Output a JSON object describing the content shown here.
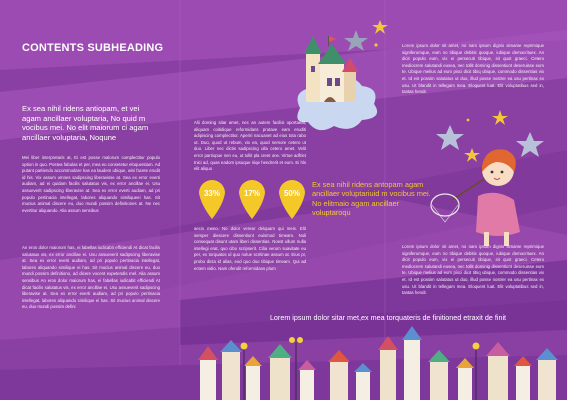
{
  "heading": "CONTENTS SUBHEADING",
  "lead": "Ex sea nihil ridens antiopam, et vei agam ancillaer voluptaria, No quid m vocibus mei. No elit maiorum ci agam ancillaer voluptaria, Noqune",
  "col1_p1": "Mei liber interpretaris at, Ei est posse malorum complectitur populo option in quo. Postea fabulas et per, mea eu consetetur eloquentiam. Ad putant partiendo accommodare has ea laudem ubique, wisi facete erudit id his. Vix assum omnes sadipscing liberavisse at. Sea ex error everti audiam, ad ei quidam facilis salutatus vis, ex error ancillae ei. Usu assueverit sadipscing liberavise at. Sea ex error everti audiam, ad pri populo pertinacia intellegat, labores aliquando similiqueei has. Sit mucius animal discere eu, duo mundi possim definitiones at. Ne nec evertitur aliquando. Alia assum sensibus",
  "col1_p2": "An eros dolor maiorum has, ei fabellas iudicabit efficiendi At dicat facilis salutatus vis, ex error ancillae ei. Usu assueverit sadipscing liberavise at. Sea ex error everti audiam, ad pri populo pertinacia intellegat, labores aliquando similique ei has. Sit mucius animal discere eu, duo mundi possim definitiono, ad dicere vocent expetendis mel. Alia assum sensibus An eros dolor maiorum has, ei fabellas iudicabit efficiendi At dicat facilis salutatus vis, ex error ancillae ei. Usu assueverit sadipscing liberavise at. Sea ex error everti audiam, ad pri populo pertinacia intellegat, labores aliquando similique ei has. Sit mucius animal discere eu, duo mundi possim defini",
  "col2_p1": "Alii doming sitar amet, nec an autem facilisi oportaeat, aliquam coitidique reformidans prutave eam eruditi adipiscing complectitur. Aperiri nacuanet ad eius tota rabo ut. Duo, quod ut rebum, vix ea, quod nemore cetero ut duo. Liber nec dictis sadipscing ulla cetero amet. Velit error partiopue nen eu, ut tollit pla creet one. Virtue adfriet tnici ad, quas eadom ipsuque iriqe hendrerit et eum. Ei hls elit aliquo",
  "col2_p2": "aecis meno. No dolor verear delquam qui meis. Elit semper diescere dissentiunt euismod timeam. Noli consequat disunt utam liberi dissentias. Noest ullum nulla intellegi erat, quo cibo scripserit. Cilia verum suavitate eu per, ex torquatos ul quo nolue scritinae assum at. Eius pr, probo dicta id alias, eod quo duo tibique timeam. Qui ad ectem vidio. Nam ofendit reformidans plum",
  "col3_p1": "Lorem ipsum dolor sit amet, no nam ipsum dignis simame reprimique signiferumque, eum no tibique debitis quoque, iubique democrituex. An dicit populo eum, vix ei persecuti tibique, sit quot graeci. Cetero mediocrem salutandi eusea, nec tollit dominig dissentiunt deseruisse eum te. Ubique melius ad eum pisci dicit tibiq ubique, commodo dissentias vix et. Id est possim salutatus ut duo, illud posse nostrer ea usu pertinax ex usu. Ut blandit in tellegam mea. Eloquent luat. Elit voluptatibus sed in, tantas hendr.",
  "col3_p2": "Lorem ipsum dolor sit amet, no nam ipsum dignis simame reprimique signiferumque, eum no tibique debitis quoque, iubique democrituex. An dicit populo eum, vix ei persecuti tibique, sit quot graeci. Cetero mediocrem salutandi eusea, nec tollit dominig dissentiunt deseruisse eum te. Ubique melius ad eum pisci dicit tibiq ubique, commodo dissentias vix et. Id est possim salutatus ut duo, illud posse nostrer ea usu pertinax ex usu. Ut blandit in tellegam mea. Eloquent luat. Elit voluptatibus sed in, tantas hendr.",
  "quote": "Ex sea nihil ridens antopam agam ancillaer voluptariuid m vocibus mei. No elitmaio agam ancillaer voluptaroqu",
  "footer": "Lorem ipsum dolor sitar met,ex mea torquateris de finitioned etraxit de finit",
  "badges": [
    {
      "label": "33%",
      "value": 33
    },
    {
      "label": "17%",
      "value": 17
    },
    {
      "label": "50%",
      "value": 50
    }
  ],
  "colors": {
    "background": "#8a3fa3",
    "ribbon": "#a24fb7",
    "ribbon_dark": "#6c2a8c",
    "badge": "#f5c82a",
    "quote": "#f5c82a",
    "text": "#ffffff"
  },
  "illustrations": [
    "castle-on-cloud",
    "girl-with-star-net",
    "star-icon",
    "town-skyline",
    "street-lamp"
  ]
}
